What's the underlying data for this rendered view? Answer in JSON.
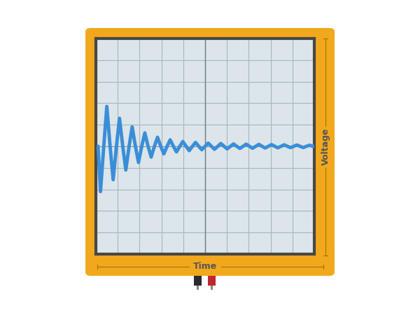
{
  "chart_data": {
    "type": "line",
    "x_label": "Time",
    "y_label": "Voltage",
    "x": [
      0.1,
      0.21,
      0.36,
      0.5,
      0.65,
      0.79,
      0.94,
      1.08,
      1.23,
      1.37,
      1.52,
      1.66,
      1.81,
      1.95,
      2.1,
      2.24,
      2.39,
      2.53,
      2.68,
      2.82,
      2.97,
      3.11,
      3.26,
      3.4,
      3.55,
      3.69,
      3.84,
      3.98,
      4.13,
      4.27,
      4.42,
      4.56,
      4.71,
      4.85,
      5.0,
      5.14,
      5.29,
      5.43,
      5.58,
      5.72,
      5.87,
      6.01,
      6.16,
      6.3,
      6.45,
      6.59,
      6.74,
      6.88,
      7.03,
      7.17,
      7.32,
      7.46,
      7.61,
      7.75,
      7.9,
      8.04,
      8.19,
      8.33,
      8.48,
      8.62,
      8.77,
      8.91,
      9.06,
      9.2,
      9.35,
      9.49,
      9.64,
      9.78,
      9.93,
      10.0
    ],
    "values": [
      0,
      -2.1,
      0,
      1.85,
      0,
      -1.55,
      0,
      1.3,
      0,
      -1.1,
      0,
      0.9,
      0,
      -0.75,
      0,
      0.62,
      0,
      -0.5,
      0,
      0.42,
      0,
      -0.35,
      0,
      0.3,
      0,
      -0.26,
      0,
      0.22,
      0,
      -0.2,
      0,
      0.18,
      0,
      -0.16,
      0,
      0.15,
      0,
      -0.14,
      0,
      0.13,
      0,
      -0.12,
      0,
      0.11,
      0,
      -0.1,
      0,
      0.1,
      0,
      -0.09,
      0,
      0.09,
      0,
      -0.08,
      0,
      0.08,
      0,
      -0.07,
      0,
      0.07,
      0,
      -0.06,
      0,
      0.06,
      0,
      -0.06,
      0,
      0.05,
      0,
      0
    ],
    "color": "#3a8ed8",
    "xlim": [
      0,
      10
    ],
    "ylim": [
      -5,
      5
    ],
    "xticks": [
      0,
      1,
      2,
      3,
      4,
      5,
      6,
      7,
      8,
      9,
      10
    ],
    "yticks": [
      -5,
      -4,
      -3,
      -2,
      -1,
      0,
      1,
      2,
      3,
      4,
      5
    ],
    "grid": true,
    "tick_labels": false
  }
}
